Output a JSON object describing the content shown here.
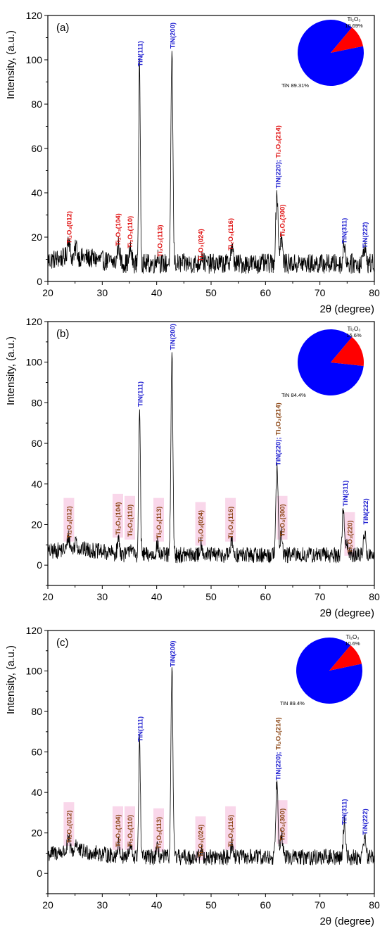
{
  "figure": {
    "colors": {
      "tin": "#1f1fd0",
      "ti2o3": "#e01010",
      "ti2o3_dark": "#8b4513",
      "highlight": "#f9d7ea",
      "pie_tin": "#0000ff",
      "pie_ti2o3": "#ff0000",
      "trace": "#000000"
    }
  },
  "chart_data": [
    {
      "type": "line",
      "panel_label": "(a)",
      "xlabel": "2θ (degree)",
      "ylabel": "Intensity, (a.u.)",
      "xlim": [
        20,
        80
      ],
      "ylim": [
        0,
        120
      ],
      "xticks": [
        "20",
        "30",
        "40",
        "50",
        "60",
        "70",
        "80"
      ],
      "yticks": [
        "0",
        "20",
        "40",
        "60",
        "80",
        "100",
        "120"
      ],
      "pattern": {
        "baseline": 8,
        "noise": 4.5,
        "peaks": [
          {
            "x": 23.8,
            "h": 9,
            "w": 0.3
          },
          {
            "x": 25.2,
            "h": 5,
            "w": 0.25
          },
          {
            "x": 33.0,
            "h": 8,
            "w": 0.3
          },
          {
            "x": 35.2,
            "h": 6,
            "w": 0.3
          },
          {
            "x": 36.85,
            "h": 88,
            "w": 0.22
          },
          {
            "x": 40.2,
            "h": 4,
            "w": 0.3
          },
          {
            "x": 42.8,
            "h": 96,
            "w": 0.25
          },
          {
            "x": 48.3,
            "h": 4,
            "w": 0.3
          },
          {
            "x": 53.8,
            "h": 7,
            "w": 0.35
          },
          {
            "x": 62.1,
            "h": 32,
            "w": 0.3
          },
          {
            "x": 62.9,
            "h": 12,
            "w": 0.3
          },
          {
            "x": 74.5,
            "h": 9,
            "w": 0.3
          },
          {
            "x": 78.2,
            "h": 8,
            "w": 0.3
          }
        ]
      },
      "peak_labels": [
        {
          "x": 23.8,
          "y": 17,
          "text": "Ti₂O₃(012)",
          "phase": "Ti2O3"
        },
        {
          "x": 32.8,
          "y": 16,
          "text": "Ti₂O₃(104)",
          "phase": "Ti2O3"
        },
        {
          "x": 35.0,
          "y": 15,
          "text": "Ti₂O₃(110)",
          "phase": "Ti2O3"
        },
        {
          "x": 40.5,
          "y": 11,
          "text": "Ti₂O₃(113)",
          "phase": "Ti2O3"
        },
        {
          "x": 48.0,
          "y": 9,
          "text": "Ti₂O₃(024)",
          "phase": "Ti2O3"
        },
        {
          "x": 53.5,
          "y": 14,
          "text": "Ti₂O₃(116)",
          "phase": "Ti2O3"
        },
        {
          "x": 63.0,
          "y": 20,
          "text": "Ti₂O₃(300)",
          "phase": "Ti2O3"
        },
        {
          "x": 62.2,
          "y": 42,
          "text": "TiN(220); Ti₂O₃(214)",
          "phase": "mixed"
        },
        {
          "x": 36.9,
          "y": 97,
          "text": "TiN(111)",
          "phase": "TiN"
        },
        {
          "x": 42.8,
          "y": 105,
          "text": "TiN(200)",
          "phase": "TiN"
        },
        {
          "x": 74.4,
          "y": 17,
          "text": "TiN(311)",
          "phase": "TiN"
        },
        {
          "x": 78.2,
          "y": 15,
          "text": "TiN(222)",
          "phase": "TiN"
        }
      ],
      "pie": {
        "slices": [
          {
            "label": "TiN",
            "value": 89.31,
            "text": "TiN 89.31%"
          },
          {
            "label": "Ti2O3",
            "value": 10.69,
            "text": "10.69%",
            "title": "Ti₂O₃"
          }
        ]
      }
    },
    {
      "type": "line",
      "panel_label": "(b)",
      "xlabel": "2θ (degree)",
      "ylabel": "Intensity, (a.u.)",
      "xlim": [
        20,
        80
      ],
      "ylim": [
        -10,
        120
      ],
      "xticks": [
        "20",
        "30",
        "40",
        "50",
        "60",
        "70",
        "80"
      ],
      "yticks": [
        "0",
        "20",
        "40",
        "60",
        "80",
        "100",
        "120"
      ],
      "pattern": {
        "baseline": 5,
        "noise": 4,
        "peaks": [
          {
            "x": 23.8,
            "h": 6,
            "w": 0.3
          },
          {
            "x": 25.2,
            "h": 5,
            "w": 0.25
          },
          {
            "x": 33.0,
            "h": 7,
            "w": 0.3
          },
          {
            "x": 35.2,
            "h": 5,
            "w": 0.3
          },
          {
            "x": 36.85,
            "h": 72,
            "w": 0.22
          },
          {
            "x": 40.1,
            "h": 5,
            "w": 0.3
          },
          {
            "x": 42.8,
            "h": 100,
            "w": 0.25
          },
          {
            "x": 48.2,
            "h": 6,
            "w": 0.3
          },
          {
            "x": 53.8,
            "h": 6,
            "w": 0.35
          },
          {
            "x": 62.1,
            "h": 42,
            "w": 0.3
          },
          {
            "x": 62.9,
            "h": 10,
            "w": 0.3
          },
          {
            "x": 74.3,
            "h": 22,
            "w": 0.3
          },
          {
            "x": 75.0,
            "h": 6,
            "w": 0.3
          },
          {
            "x": 78.2,
            "h": 11,
            "w": 0.3
          }
        ]
      },
      "peak_labels": [
        {
          "x": 23.8,
          "y": 13,
          "text": "Ti₂O₃(012)",
          "phase": "Ti2O3"
        },
        {
          "x": 32.8,
          "y": 15,
          "text": "Ti₂O₃(104)",
          "phase": "Ti2O3"
        },
        {
          "x": 35.0,
          "y": 14,
          "text": "Ti₂O₃(110)",
          "phase": "Ti2O3"
        },
        {
          "x": 40.3,
          "y": 13,
          "text": "Ti₂O₃(113)",
          "phase": "Ti2O3"
        },
        {
          "x": 48.0,
          "y": 11,
          "text": "Ti₂O₃(024)",
          "phase": "Ti2O3"
        },
        {
          "x": 53.5,
          "y": 13,
          "text": "Ti₂O₃(116)",
          "phase": "Ti2O3"
        },
        {
          "x": 63.0,
          "y": 14,
          "text": "Ti₂O₃(300)",
          "phase": "Ti2O3"
        },
        {
          "x": 62.2,
          "y": 49,
          "text": "TiN(220); Ti₂O₃(214)",
          "phase": "mixed"
        },
        {
          "x": 36.9,
          "y": 78,
          "text": "TiN(111)",
          "phase": "TiN"
        },
        {
          "x": 42.8,
          "y": 106,
          "text": "TiN(200)",
          "phase": "TiN"
        },
        {
          "x": 74.6,
          "y": 29,
          "text": "TiN(311)",
          "phase": "TiN"
        },
        {
          "x": 75.4,
          "y": 6,
          "text": "Ti₂O₃(220)",
          "phase": "Ti2O3"
        },
        {
          "x": 78.3,
          "y": 20,
          "text": "TiN(222)",
          "phase": "TiN"
        }
      ],
      "pie": {
        "slices": [
          {
            "label": "TiN",
            "value": 84.4,
            "text": "TiN 84.4%"
          },
          {
            "label": "Ti2O3",
            "value": 15.6,
            "text": "15.6%",
            "title": "Ti₂O₃"
          }
        ]
      }
    },
    {
      "type": "line",
      "panel_label": "(c)",
      "xlabel": "2θ (degree)",
      "ylabel": "Intensity, (a.u.)",
      "xlim": [
        20,
        80
      ],
      "ylim": [
        -10,
        120
      ],
      "xticks": [
        "20",
        "30",
        "40",
        "50",
        "60",
        "70",
        "80"
      ],
      "yticks": [
        "0",
        "20",
        "40",
        "60",
        "80",
        "100",
        "120"
      ],
      "pattern": {
        "baseline": 8,
        "noise": 4,
        "peaks": [
          {
            "x": 23.8,
            "h": 6,
            "w": 0.3
          },
          {
            "x": 25.2,
            "h": 5,
            "w": 0.25
          },
          {
            "x": 33.0,
            "h": 6,
            "w": 0.3
          },
          {
            "x": 35.2,
            "h": 5,
            "w": 0.3
          },
          {
            "x": 36.85,
            "h": 57,
            "w": 0.22
          },
          {
            "x": 40.1,
            "h": 4,
            "w": 0.3
          },
          {
            "x": 42.8,
            "h": 94,
            "w": 0.25
          },
          {
            "x": 48.2,
            "h": 3,
            "w": 0.3
          },
          {
            "x": 53.8,
            "h": 6,
            "w": 0.35
          },
          {
            "x": 62.1,
            "h": 38,
            "w": 0.3
          },
          {
            "x": 62.9,
            "h": 12,
            "w": 0.3
          },
          {
            "x": 74.5,
            "h": 17,
            "w": 0.3
          },
          {
            "x": 78.2,
            "h": 11,
            "w": 0.3
          }
        ]
      },
      "peak_labels": [
        {
          "x": 23.8,
          "y": 15,
          "text": "Ti₂O₃(012)",
          "phase": "Ti2O3"
        },
        {
          "x": 32.8,
          "y": 13,
          "text": "Ti₂O₃(104)",
          "phase": "Ti2O3"
        },
        {
          "x": 35.0,
          "y": 13,
          "text": "Ti₂O₃(110)",
          "phase": "Ti2O3"
        },
        {
          "x": 40.3,
          "y": 12,
          "text": "Ti₂O₃(113)",
          "phase": "Ti2O3"
        },
        {
          "x": 48.0,
          "y": 8,
          "text": "Ti₂O₃(024)",
          "phase": "Ti2O3"
        },
        {
          "x": 53.5,
          "y": 13,
          "text": "Ti₂O₃(116)",
          "phase": "Ti2O3"
        },
        {
          "x": 63.0,
          "y": 16,
          "text": "Ti₂O₃(300)",
          "phase": "Ti2O3"
        },
        {
          "x": 62.2,
          "y": 46,
          "text": "TiN(220); Ti₂O₃(214)",
          "phase": "mixed"
        },
        {
          "x": 36.9,
          "y": 65,
          "text": "TiN(111)",
          "phase": "TiN"
        },
        {
          "x": 42.8,
          "y": 102,
          "text": "TiN(200)",
          "phase": "TiN"
        },
        {
          "x": 74.4,
          "y": 24,
          "text": "TiN(311)",
          "phase": "TiN"
        },
        {
          "x": 78.2,
          "y": 19,
          "text": "TiN(222)",
          "phase": "TiN"
        }
      ],
      "pie": {
        "slices": [
          {
            "label": "TiN",
            "value": 89.4,
            "text": "TiN 89.4%"
          },
          {
            "label": "Ti2O3",
            "value": 10.6,
            "text": "10.6%",
            "title": "Ti₂O₃"
          }
        ]
      }
    }
  ]
}
